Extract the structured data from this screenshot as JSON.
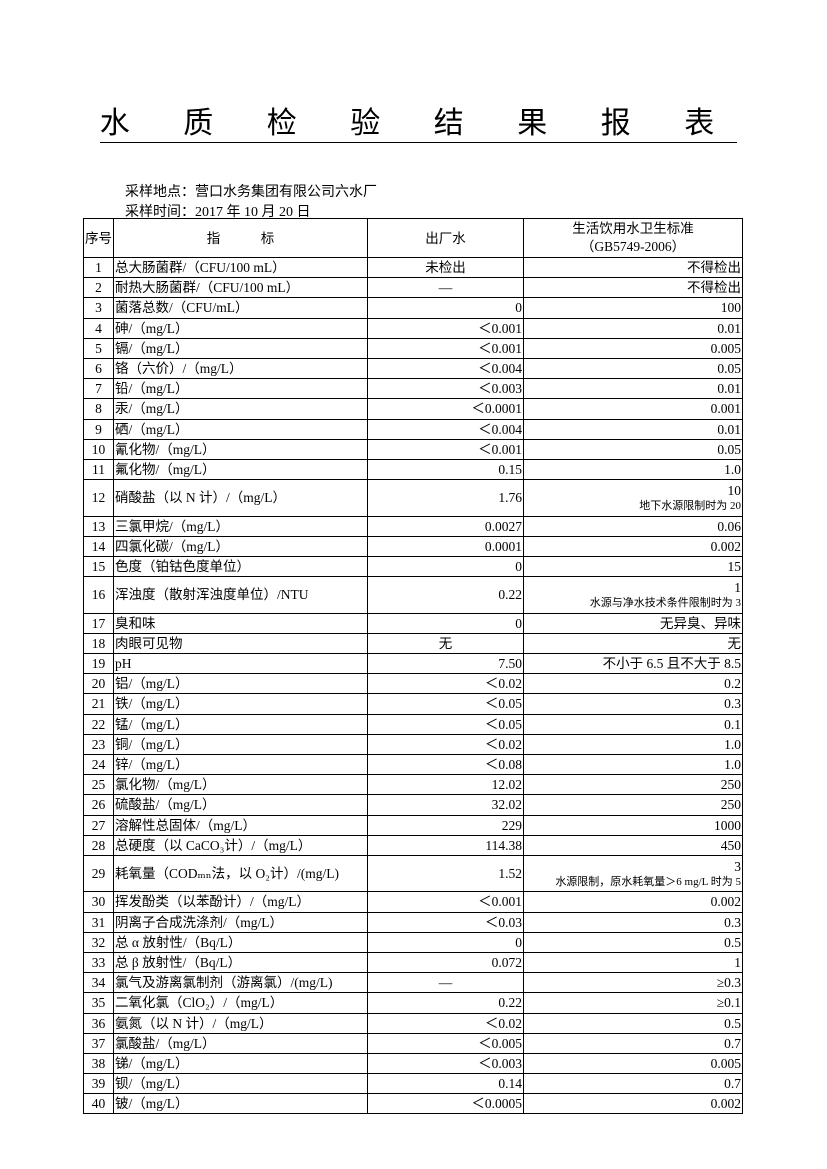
{
  "title": "水 质 检 验 结 果 报 表",
  "sampling_location": "采样地点：营口水务集团有限公司六水厂",
  "sampling_time": "采样时间：2017 年 10 月 20 日",
  "headers": {
    "no": "序号",
    "indicator": "指　　　标",
    "outlet": "出厂水",
    "standard_line1": "生活饮用水卫生标准",
    "standard_line2": "（GB5749-2006）"
  },
  "rows": [
    {
      "no": "1",
      "indicator": "总大肠菌群/（CFU/100 mL）",
      "outlet": "未检出",
      "standard": "不得检出"
    },
    {
      "no": "2",
      "indicator": "耐热大肠菌群/（CFU/100 mL）",
      "outlet": "—",
      "standard": "不得检出"
    },
    {
      "no": "3",
      "indicator": "菌落总数/（CFU/mL）",
      "outlet": "0",
      "standard": "100"
    },
    {
      "no": "4",
      "indicator": "砷/（mg/L）",
      "outlet": "＜0.001",
      "standard": "0.01"
    },
    {
      "no": "5",
      "indicator": "镉/（mg/L）",
      "outlet": "＜0.001",
      "standard": "0.005"
    },
    {
      "no": "6",
      "indicator": "铬（六价）/（mg/L）",
      "outlet": "＜0.004",
      "standard": "0.05"
    },
    {
      "no": "7",
      "indicator": "铅/（mg/L）",
      "outlet": "＜0.003",
      "standard": "0.01"
    },
    {
      "no": "8",
      "indicator": "汞/（mg/L）",
      "outlet": "＜0.0001",
      "standard": "0.001"
    },
    {
      "no": "9",
      "indicator": "硒/（mg/L）",
      "outlet": "＜0.004",
      "standard": "0.01"
    },
    {
      "no": "10",
      "indicator": "氰化物/（mg/L）",
      "outlet": "＜0.001",
      "standard": "0.05"
    },
    {
      "no": "11",
      "indicator": "氟化物/（mg/L）",
      "outlet": "0.15",
      "standard": "1.0"
    },
    {
      "no": "12",
      "indicator": "硝酸盐（以 N 计）/（mg/L）",
      "outlet": "1.76",
      "standard": "10",
      "note": "地下水源限制时为 20"
    },
    {
      "no": "13",
      "indicator": "三氯甲烷/（mg/L）",
      "outlet": "0.0027",
      "standard": "0.06"
    },
    {
      "no": "14",
      "indicator": "四氯化碳/（mg/L）",
      "outlet": "0.0001",
      "standard": "0.002"
    },
    {
      "no": "15",
      "indicator": "色度（铂钴色度单位）",
      "outlet": "0",
      "standard": "15"
    },
    {
      "no": "16",
      "indicator": "浑浊度（散射浑浊度单位）/NTU",
      "outlet": "0.22",
      "standard": "1",
      "note": "水源与净水技术条件限制时为 3"
    },
    {
      "no": "17",
      "indicator": "臭和味",
      "outlet": "0",
      "standard": "无异臭、异味"
    },
    {
      "no": "18",
      "indicator": "肉眼可见物",
      "outlet": "无",
      "standard": "无"
    },
    {
      "no": "19",
      "indicator": "pH",
      "outlet": "7.50",
      "standard": "不小于 6.5 且不大于 8.5"
    },
    {
      "no": "20",
      "indicator": "铝/（mg/L）",
      "outlet": "＜0.02",
      "standard": "0.2"
    },
    {
      "no": "21",
      "indicator": "铁/（mg/L）",
      "outlet": "＜0.05",
      "standard": "0.3"
    },
    {
      "no": "22",
      "indicator": "锰/（mg/L）",
      "outlet": "＜0.05",
      "standard": "0.1"
    },
    {
      "no": "23",
      "indicator": "铜/（mg/L）",
      "outlet": "＜0.02",
      "standard": "1.0"
    },
    {
      "no": "24",
      "indicator": "锌/（mg/L）",
      "outlet": "＜0.08",
      "standard": "1.0"
    },
    {
      "no": "25",
      "indicator": "氯化物/（mg/L）",
      "outlet": "12.02",
      "standard": "250"
    },
    {
      "no": "26",
      "indicator": "硫酸盐/（mg/L）",
      "outlet": "32.02",
      "standard": "250"
    },
    {
      "no": "27",
      "indicator": "溶解性总固体/（mg/L）",
      "outlet": "229",
      "standard": "1000"
    },
    {
      "no": "28",
      "indicator": "总硬度（以 CaCO₃计）/（mg/L）",
      "outlet": "114.38",
      "standard": "450"
    },
    {
      "no": "29",
      "indicator": "耗氧量（CODₘₙ法，以 O₂计）/(mg/L)",
      "outlet": "1.52",
      "standard": "3",
      "note": "水源限制，原水耗氧量＞6 mg/L 时为 5"
    },
    {
      "no": "30",
      "indicator": "挥发酚类（以苯酚计）/（mg/L）",
      "outlet": "＜0.001",
      "standard": "0.002"
    },
    {
      "no": "31",
      "indicator": "阴离子合成洗涤剂/（mg/L）",
      "outlet": "＜0.03",
      "standard": "0.3"
    },
    {
      "no": "32",
      "indicator": "总 α 放射性/（Bq/L）",
      "outlet": "0",
      "standard": "0.5"
    },
    {
      "no": "33",
      "indicator": "总 β 放射性/（Bq/L）",
      "outlet": "0.072",
      "standard": "1"
    },
    {
      "no": "34",
      "indicator": "氯气及游离氯制剂（游离氯）/(mg/L)",
      "outlet": "—",
      "standard": "≥0.3"
    },
    {
      "no": "35",
      "indicator": "二氧化氯（ClO₂）/（mg/L）",
      "outlet": "0.22",
      "standard": "≥0.1"
    },
    {
      "no": "36",
      "indicator": "氨氮（以 N 计）/（mg/L）",
      "outlet": "＜0.02",
      "standard": "0.5"
    },
    {
      "no": "37",
      "indicator": "氯酸盐/（mg/L）",
      "outlet": "＜0.005",
      "standard": "0.7"
    },
    {
      "no": "38",
      "indicator": "锑/（mg/L）",
      "outlet": "＜0.003",
      "standard": "0.005"
    },
    {
      "no": "39",
      "indicator": "钡/（mg/L）",
      "outlet": "0.14",
      "standard": "0.7"
    },
    {
      "no": "40",
      "indicator": "铍/（mg/L）",
      "outlet": "＜0.0005",
      "standard": "0.002"
    }
  ]
}
